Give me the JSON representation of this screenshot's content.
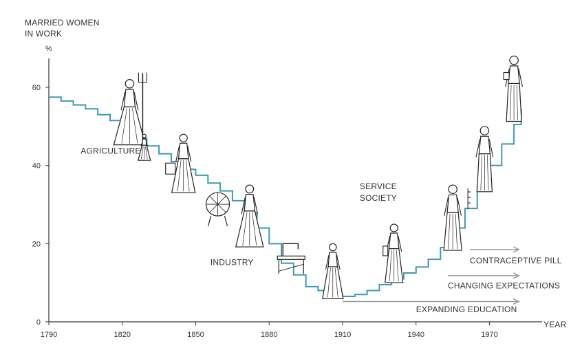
{
  "chart_data": {
    "type": "line",
    "title": "",
    "ylabel_lines": [
      "MARRIED WOMEN",
      "IN WORK"
    ],
    "y_unit": "%",
    "xlabel": "YEAR",
    "xlim": [
      1790,
      1985
    ],
    "ylim": [
      0,
      70
    ],
    "xticks": [
      1790,
      1820,
      1850,
      1880,
      1910,
      1940,
      1970
    ],
    "yticks": [
      0,
      20,
      40,
      60
    ],
    "grid": false,
    "line_color": "#3a9bb5",
    "arrow_color": "#999999",
    "series": [
      {
        "name": "",
        "x": [
          1790,
          1795,
          1800,
          1805,
          1810,
          1815,
          1820,
          1825,
          1830,
          1835,
          1840,
          1845,
          1850,
          1855,
          1860,
          1865,
          1870,
          1875,
          1880,
          1885,
          1890,
          1895,
          1900,
          1905,
          1910,
          1915,
          1920,
          1925,
          1930,
          1935,
          1940,
          1945,
          1950,
          1955,
          1960,
          1965,
          1970,
          1975,
          1980,
          1983
        ],
        "values": [
          57.5,
          56.5,
          55.5,
          54.5,
          53,
          51.5,
          49.5,
          47,
          45,
          43,
          41,
          39,
          37.5,
          35.5,
          33.5,
          31,
          28,
          24,
          20,
          15,
          12,
          9,
          8,
          7,
          6.5,
          7,
          8,
          9.5,
          11,
          12.5,
          14,
          16,
          19,
          24,
          29,
          34.5,
          40,
          45.5,
          50.5,
          54.5
        ]
      }
    ],
    "annotations": [
      {
        "text": "AGRICULTURE",
        "x": 1803,
        "y": 43
      },
      {
        "text": "INDUSTRY",
        "x": 1856,
        "y": 14.5
      },
      {
        "text": "SERVICE",
        "x": 1917,
        "y": 34
      },
      {
        "text": "SOCIETY",
        "x": 1917,
        "y": 31
      },
      {
        "text": "CONTRACEPTIVE PILL",
        "x": 1962,
        "y": 15
      },
      {
        "text": "CHANGING EXPECTATIONS",
        "x": 1953,
        "y": 8.5
      },
      {
        "text": "EXPANDING EDUCATION",
        "x": 1940,
        "y": 2.5
      }
    ],
    "arrows": [
      {
        "x_start": 1962,
        "x_end": 1982,
        "y": 18.5
      },
      {
        "x_start": 1953,
        "x_end": 1982,
        "y": 11.8
      },
      {
        "x_start": 1910,
        "x_end": 1982,
        "y": 5.2
      }
    ]
  },
  "figures": [
    {
      "icon": "farm-woman-pitchfork-icon",
      "x": 1823,
      "y": 62
    },
    {
      "icon": "child-icon",
      "x": 1829,
      "y": 48
    },
    {
      "icon": "woman-carrying-basket-icon",
      "x": 1845,
      "y": 48
    },
    {
      "icon": "spinning-wheel-icon",
      "x": 1859,
      "y": 35
    },
    {
      "icon": "woman-standing-icon",
      "x": 1872,
      "y": 35
    },
    {
      "icon": "sewing-machine-icon",
      "x": 1889,
      "y": 20
    },
    {
      "icon": "factory-woman-icon",
      "x": 1906,
      "y": 20
    },
    {
      "icon": "service-woman-icon",
      "x": 1931,
      "y": 25
    },
    {
      "icon": "professional-woman-icon",
      "x": 1955,
      "y": 35
    },
    {
      "icon": "office-woman-icon",
      "x": 1968,
      "y": 50
    },
    {
      "icon": "modern-woman-icon",
      "x": 1980,
      "y": 68
    }
  ]
}
